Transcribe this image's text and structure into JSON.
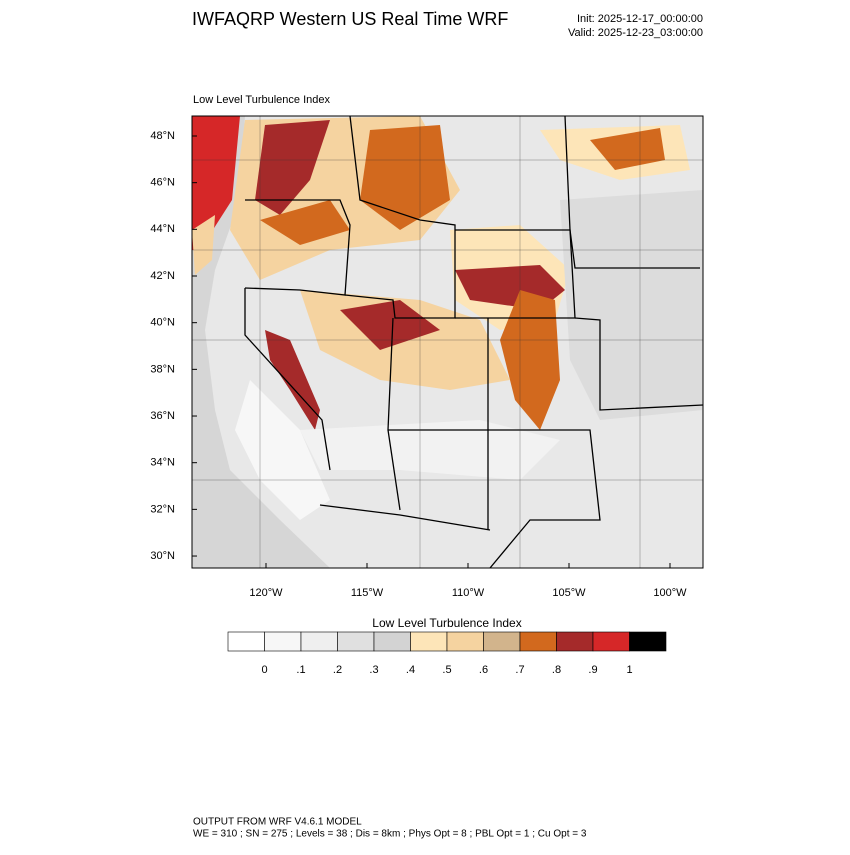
{
  "header": {
    "title": "IWFAQRP Western US Real Time WRF",
    "init": "Init: 2025-12-17_00:00:00",
    "valid": "Valid: 2025-12-23_03:00:00"
  },
  "map": {
    "label": "Low Level Turbulence Index",
    "lat_labels": [
      "48°N",
      "46°N",
      "44°N",
      "42°N",
      "40°N",
      "38°N",
      "36°N",
      "34°N",
      "32°N",
      "30°N"
    ],
    "lon_labels": [
      "120°W",
      "115°W",
      "110°W",
      "105°W",
      "100°W"
    ]
  },
  "colorbar": {
    "title": "Low Level Turbulence Index",
    "colors": [
      "#ffffff",
      "#f7f7f7",
      "#efefef",
      "#e0e0e0",
      "#d3d3d3",
      "#fde5b8",
      "#f5d3a0",
      "#d2b48c",
      "#d2691e",
      "#a52a2a",
      "#d62728",
      "#000000"
    ],
    "labels": [
      "0",
      ".1",
      ".2",
      ".3",
      ".4",
      ".5",
      ".6",
      ".7",
      ".8",
      ".9",
      "1"
    ]
  },
  "footer": {
    "line1": "OUTPUT FROM WRF V4.6.1 MODEL",
    "line2": "WE = 310 ; SN = 275 ; Levels = 38 ; Dis = 8km ; Phys Opt = 8 ; PBL Opt = 1 ; Cu Opt = 3"
  }
}
